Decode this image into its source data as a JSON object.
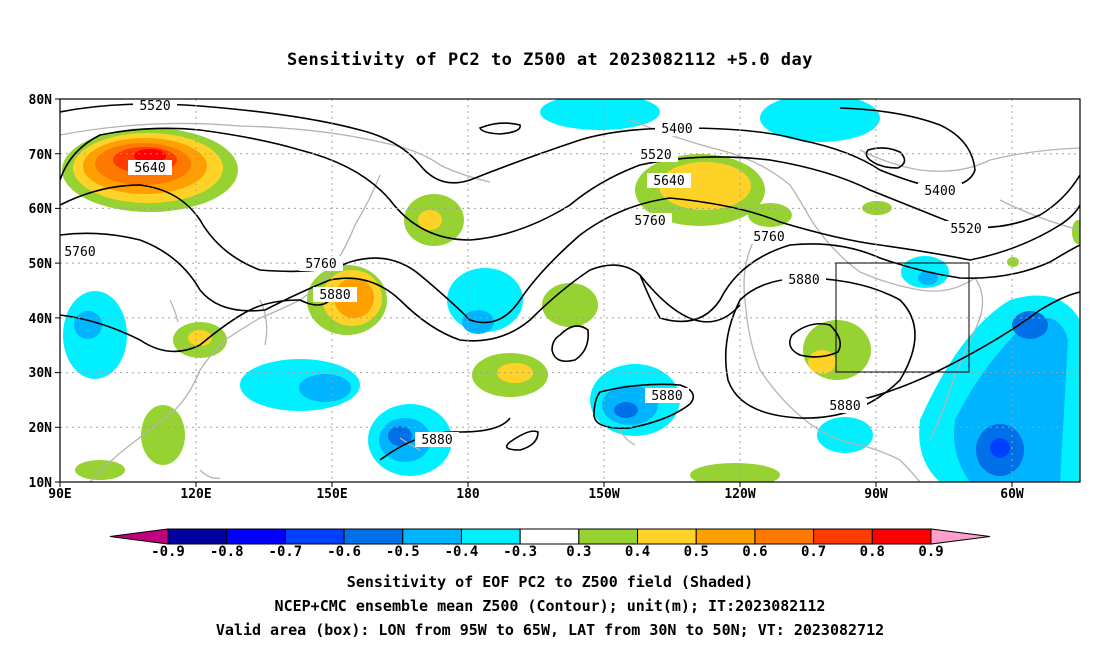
{
  "title": "Sensitivity of PC2 to Z500 at 2023082112 +5.0 day",
  "captions": [
    "Sensitivity of EOF PC2 to Z500 field (Shaded)",
    "NCEP+CMC ensemble mean Z500 (Contour); unit(m); IT:2023082112",
    "Valid area (box): LON from 95W to 65W, LAT from 30N to 50N; VT: 2023082712"
  ],
  "axes": {
    "lat_labels": [
      "80N",
      "70N",
      "60N",
      "50N",
      "40N",
      "30N",
      "20N",
      "10N"
    ],
    "lon_labels": [
      "90E",
      "120E",
      "150E",
      "180",
      "150W",
      "120W",
      "90W",
      "60W"
    ]
  },
  "map": {
    "lon_range": [
      90,
      315
    ],
    "lat_range": [
      10,
      80
    ],
    "valid_box": {
      "lon_w": -95,
      "lon_e": -65,
      "lat_s": 30,
      "lat_n": 50
    },
    "contour_labels": [
      "5520",
      "5640",
      "5760",
      "5760",
      "5880",
      "5880",
      "5400",
      "5520",
      "5640",
      "5760",
      "5400",
      "5520",
      "5760",
      "5880",
      "5880",
      "5880"
    ]
  },
  "colorbar": {
    "levels": [
      "-0.9",
      "-0.8",
      "-0.7",
      "-0.6",
      "-0.5",
      "-0.4",
      "-0.3",
      "0.3",
      "0.4",
      "0.5",
      "0.6",
      "0.7",
      "0.8",
      "0.9"
    ],
    "colors": [
      "#c0007f",
      "#0000a0",
      "#0000ff",
      "#0040ff",
      "#0070e8",
      "#00b4ff",
      "#00f0ff",
      "#ffffff",
      "#96d232",
      "#ffd228",
      "#ffa000",
      "#ff7800",
      "#ff3c00",
      "#ff0000",
      "#ffa0cc"
    ]
  },
  "colors": {
    "land": "#b4b4b4",
    "contour": "#000000",
    "grid": "#a0a0a0"
  }
}
